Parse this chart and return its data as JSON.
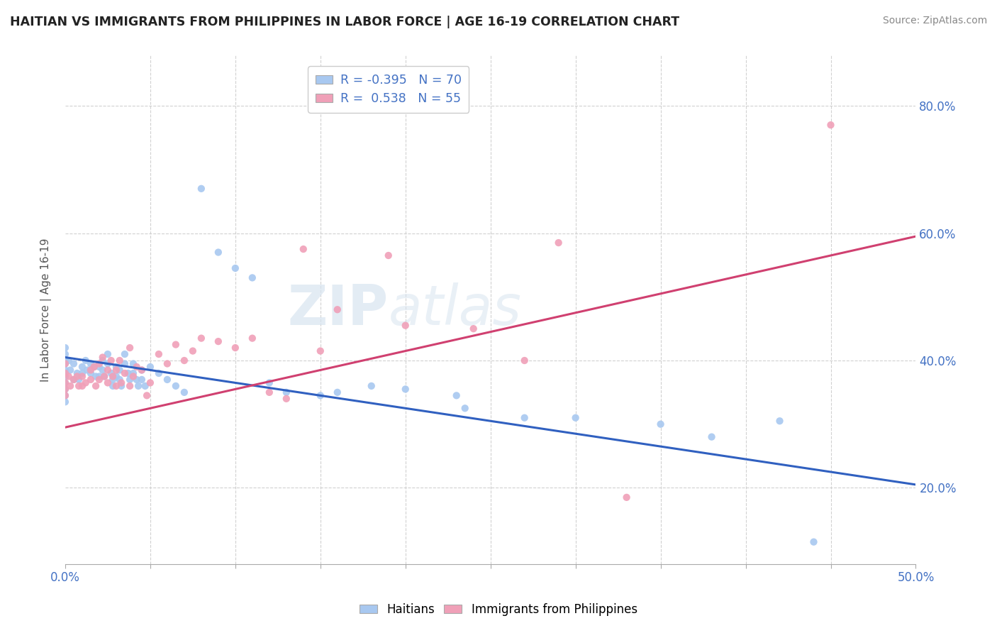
{
  "title": "HAITIAN VS IMMIGRANTS FROM PHILIPPINES IN LABOR FORCE | AGE 16-19 CORRELATION CHART",
  "source": "Source: ZipAtlas.com",
  "ylabel": "In Labor Force | Age 16-19",
  "xmin": 0.0,
  "xmax": 0.5,
  "ymin": 0.08,
  "ymax": 0.88,
  "xticks": [
    0.0,
    0.05,
    0.1,
    0.15,
    0.2,
    0.25,
    0.3,
    0.35,
    0.4,
    0.45,
    0.5
  ],
  "xticklabels": [
    "0.0%",
    "",
    "",
    "",
    "",
    "",
    "",
    "",
    "",
    "",
    "50.0%"
  ],
  "ytick_positions": [
    0.2,
    0.4,
    0.6,
    0.8
  ],
  "ytick_labels": [
    "20.0%",
    "40.0%",
    "60.0%",
    "80.0%"
  ],
  "blue_color": "#a8c8f0",
  "pink_color": "#f0a0b8",
  "blue_line_color": "#3060c0",
  "pink_line_color": "#d04070",
  "watermark_text": "ZIP",
  "watermark_text2": "atlas",
  "blue_points": [
    [
      0.0,
      0.42
    ],
    [
      0.0,
      0.41
    ],
    [
      0.0,
      0.4
    ],
    [
      0.0,
      0.395
    ],
    [
      0.0,
      0.385
    ],
    [
      0.0,
      0.375
    ],
    [
      0.0,
      0.365
    ],
    [
      0.0,
      0.355
    ],
    [
      0.0,
      0.345
    ],
    [
      0.0,
      0.335
    ],
    [
      0.002,
      0.4
    ],
    [
      0.003,
      0.385
    ],
    [
      0.005,
      0.395
    ],
    [
      0.005,
      0.37
    ],
    [
      0.007,
      0.38
    ],
    [
      0.008,
      0.37
    ],
    [
      0.01,
      0.39
    ],
    [
      0.01,
      0.38
    ],
    [
      0.012,
      0.4
    ],
    [
      0.013,
      0.385
    ],
    [
      0.015,
      0.395
    ],
    [
      0.015,
      0.38
    ],
    [
      0.017,
      0.39
    ],
    [
      0.018,
      0.375
    ],
    [
      0.02,
      0.39
    ],
    [
      0.02,
      0.375
    ],
    [
      0.022,
      0.4
    ],
    [
      0.022,
      0.385
    ],
    [
      0.023,
      0.375
    ],
    [
      0.025,
      0.41
    ],
    [
      0.025,
      0.395
    ],
    [
      0.027,
      0.38
    ],
    [
      0.028,
      0.37
    ],
    [
      0.028,
      0.36
    ],
    [
      0.03,
      0.39
    ],
    [
      0.03,
      0.375
    ],
    [
      0.032,
      0.385
    ],
    [
      0.032,
      0.37
    ],
    [
      0.033,
      0.36
    ],
    [
      0.035,
      0.41
    ],
    [
      0.035,
      0.395
    ],
    [
      0.037,
      0.38
    ],
    [
      0.038,
      0.37
    ],
    [
      0.04,
      0.395
    ],
    [
      0.04,
      0.38
    ],
    [
      0.042,
      0.37
    ],
    [
      0.043,
      0.36
    ],
    [
      0.045,
      0.385
    ],
    [
      0.045,
      0.37
    ],
    [
      0.047,
      0.36
    ],
    [
      0.05,
      0.39
    ],
    [
      0.055,
      0.38
    ],
    [
      0.06,
      0.37
    ],
    [
      0.065,
      0.36
    ],
    [
      0.07,
      0.35
    ],
    [
      0.08,
      0.67
    ],
    [
      0.09,
      0.57
    ],
    [
      0.1,
      0.545
    ],
    [
      0.11,
      0.53
    ],
    [
      0.12,
      0.365
    ],
    [
      0.13,
      0.35
    ],
    [
      0.15,
      0.345
    ],
    [
      0.16,
      0.35
    ],
    [
      0.18,
      0.36
    ],
    [
      0.2,
      0.355
    ],
    [
      0.23,
      0.345
    ],
    [
      0.235,
      0.325
    ],
    [
      0.27,
      0.31
    ],
    [
      0.3,
      0.31
    ],
    [
      0.35,
      0.3
    ],
    [
      0.38,
      0.28
    ],
    [
      0.42,
      0.305
    ],
    [
      0.44,
      0.115
    ]
  ],
  "pink_points": [
    [
      0.0,
      0.395
    ],
    [
      0.0,
      0.38
    ],
    [
      0.0,
      0.365
    ],
    [
      0.0,
      0.355
    ],
    [
      0.0,
      0.345
    ],
    [
      0.002,
      0.375
    ],
    [
      0.003,
      0.36
    ],
    [
      0.005,
      0.37
    ],
    [
      0.007,
      0.375
    ],
    [
      0.008,
      0.36
    ],
    [
      0.01,
      0.375
    ],
    [
      0.01,
      0.36
    ],
    [
      0.012,
      0.365
    ],
    [
      0.015,
      0.385
    ],
    [
      0.015,
      0.37
    ],
    [
      0.017,
      0.39
    ],
    [
      0.018,
      0.36
    ],
    [
      0.02,
      0.395
    ],
    [
      0.02,
      0.37
    ],
    [
      0.022,
      0.405
    ],
    [
      0.023,
      0.375
    ],
    [
      0.025,
      0.385
    ],
    [
      0.025,
      0.365
    ],
    [
      0.027,
      0.4
    ],
    [
      0.028,
      0.375
    ],
    [
      0.03,
      0.36
    ],
    [
      0.03,
      0.385
    ],
    [
      0.032,
      0.4
    ],
    [
      0.033,
      0.365
    ],
    [
      0.035,
      0.38
    ],
    [
      0.038,
      0.36
    ],
    [
      0.038,
      0.42
    ],
    [
      0.04,
      0.375
    ],
    [
      0.042,
      0.39
    ],
    [
      0.045,
      0.385
    ],
    [
      0.048,
      0.345
    ],
    [
      0.05,
      0.365
    ],
    [
      0.055,
      0.41
    ],
    [
      0.06,
      0.395
    ],
    [
      0.065,
      0.425
    ],
    [
      0.07,
      0.4
    ],
    [
      0.075,
      0.415
    ],
    [
      0.08,
      0.435
    ],
    [
      0.09,
      0.43
    ],
    [
      0.1,
      0.42
    ],
    [
      0.11,
      0.435
    ],
    [
      0.12,
      0.35
    ],
    [
      0.13,
      0.34
    ],
    [
      0.14,
      0.575
    ],
    [
      0.15,
      0.415
    ],
    [
      0.16,
      0.48
    ],
    [
      0.19,
      0.565
    ],
    [
      0.2,
      0.455
    ],
    [
      0.24,
      0.45
    ],
    [
      0.27,
      0.4
    ],
    [
      0.29,
      0.585
    ],
    [
      0.33,
      0.185
    ],
    [
      0.45,
      0.77
    ]
  ],
  "blue_line": [
    [
      0.0,
      0.405
    ],
    [
      0.5,
      0.205
    ]
  ],
  "pink_line": [
    [
      0.0,
      0.295
    ],
    [
      0.5,
      0.595
    ]
  ]
}
